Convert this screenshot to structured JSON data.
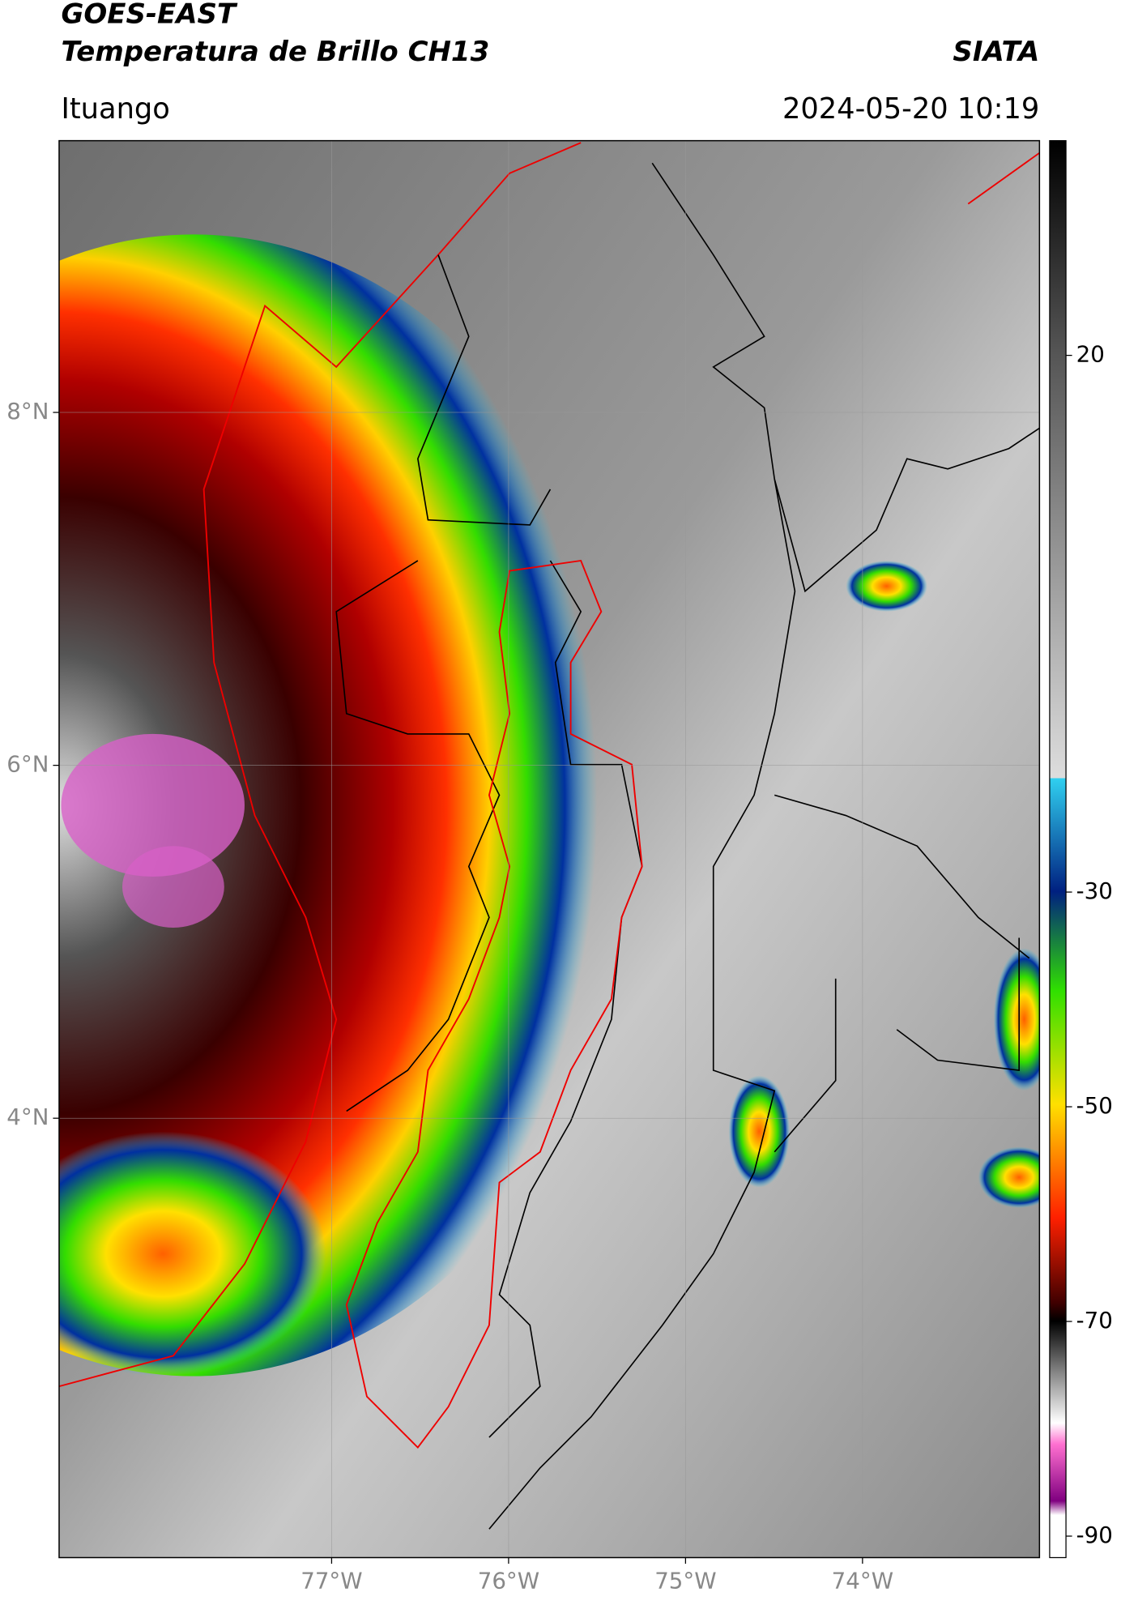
{
  "header": {
    "title": "GOES-EAST",
    "subtitle": "Temperatura de Brillo CH13",
    "source": "SIATA",
    "location": "Ituango",
    "datetime": "2024-05-20 10:19"
  },
  "map": {
    "xlim": [
      -78.54,
      -73.0
    ],
    "ylim": [
      1.51,
      9.54
    ],
    "xticks": [
      {
        "value": -77,
        "label": "77°W"
      },
      {
        "value": -76,
        "label": "76°W"
      },
      {
        "value": -75,
        "label": "75°W"
      },
      {
        "value": -74,
        "label": "74°W"
      }
    ],
    "yticks": [
      {
        "value": 8,
        "label": "8°N"
      },
      {
        "value": 6,
        "label": "6°N"
      },
      {
        "value": 4,
        "label": "4°N"
      }
    ],
    "grid": true
  },
  "colorbar": {
    "lim": [
      -92,
      40
    ],
    "ticks": [
      20,
      -30,
      -50,
      -70,
      -90
    ]
  }
}
